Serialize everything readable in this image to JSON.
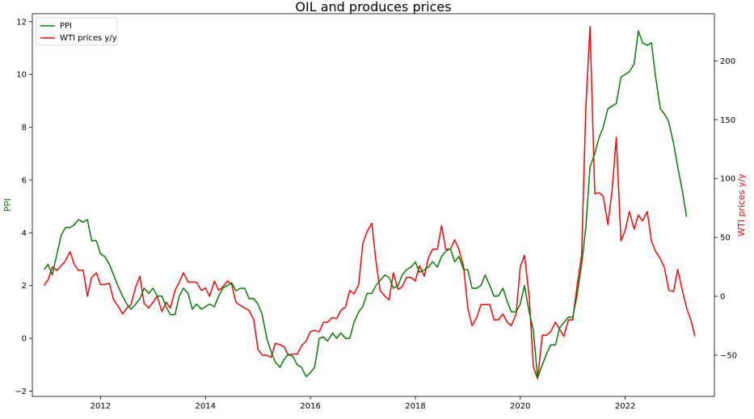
{
  "chart_data": {
    "type": "line",
    "title": "OIL and produces prices",
    "xlabel": "",
    "ylabel_left": "PPI",
    "ylabel_right": "WTI prices y/y",
    "xlim": [
      2010.7,
      2023.7
    ],
    "ylim_left": [
      -2.2,
      12.3
    ],
    "ylim_right": [
      -85,
      240
    ],
    "x_ticks": [
      2012,
      2014,
      2016,
      2018,
      2020,
      2022
    ],
    "y_ticks_left": [
      -2,
      0,
      2,
      4,
      6,
      8,
      10,
      12
    ],
    "y_ticks_right": [
      -50,
      0,
      50,
      100,
      150,
      200
    ],
    "grid": false,
    "legend_position": "top-left",
    "colors": {
      "PPI": "#008000",
      "WTI prices y/y": "#ff0000"
    },
    "series": [
      {
        "name": "PPI",
        "axis": "left",
        "points": [
          [
            2010.92,
            2.6
          ],
          [
            2011.0,
            2.8
          ],
          [
            2011.08,
            2.4
          ],
          [
            2011.17,
            3.2
          ],
          [
            2011.25,
            3.9
          ],
          [
            2011.33,
            4.2
          ],
          [
            2011.42,
            4.2
          ],
          [
            2011.5,
            4.3
          ],
          [
            2011.58,
            4.5
          ],
          [
            2011.67,
            4.4
          ],
          [
            2011.75,
            4.5
          ],
          [
            2011.83,
            3.7
          ],
          [
            2011.92,
            3.7
          ],
          [
            2012.0,
            3.2
          ],
          [
            2012.08,
            3.1
          ],
          [
            2012.17,
            2.8
          ],
          [
            2012.25,
            2.4
          ],
          [
            2012.33,
            2.0
          ],
          [
            2012.42,
            1.6
          ],
          [
            2012.5,
            1.3
          ],
          [
            2012.58,
            1.1
          ],
          [
            2012.67,
            1.3
          ],
          [
            2012.75,
            1.5
          ],
          [
            2012.83,
            1.9
          ],
          [
            2012.92,
            1.7
          ],
          [
            2013.0,
            1.9
          ],
          [
            2013.08,
            1.6
          ],
          [
            2013.17,
            1.6
          ],
          [
            2013.25,
            1.2
          ],
          [
            2013.33,
            0.9
          ],
          [
            2013.42,
            0.9
          ],
          [
            2013.5,
            1.6
          ],
          [
            2013.58,
            1.9
          ],
          [
            2013.67,
            1.7
          ],
          [
            2013.75,
            1.1
          ],
          [
            2013.83,
            1.3
          ],
          [
            2013.92,
            1.1
          ],
          [
            2014.0,
            1.2
          ],
          [
            2014.08,
            1.3
          ],
          [
            2014.17,
            1.2
          ],
          [
            2014.25,
            1.6
          ],
          [
            2014.33,
            1.9
          ],
          [
            2014.42,
            2.0
          ],
          [
            2014.5,
            2.1
          ],
          [
            2014.58,
            1.8
          ],
          [
            2014.67,
            1.9
          ],
          [
            2014.75,
            1.9
          ],
          [
            2014.83,
            1.5
          ],
          [
            2014.92,
            1.5
          ],
          [
            2015.0,
            1.3
          ],
          [
            2015.08,
            0.9
          ],
          [
            2015.17,
            0.0
          ],
          [
            2015.25,
            -0.5
          ],
          [
            2015.33,
            -0.9
          ],
          [
            2015.42,
            -1.1
          ],
          [
            2015.5,
            -0.8
          ],
          [
            2015.58,
            -0.6
          ],
          [
            2015.67,
            -0.7
          ],
          [
            2015.75,
            -1.0
          ],
          [
            2015.83,
            -1.1
          ],
          [
            2015.92,
            -1.45
          ],
          [
            2016.0,
            -1.3
          ],
          [
            2016.08,
            -1.1
          ],
          [
            2016.17,
            0.0
          ],
          [
            2016.25,
            0.05
          ],
          [
            2016.33,
            -0.1
          ],
          [
            2016.42,
            0.2
          ],
          [
            2016.5,
            0.0
          ],
          [
            2016.58,
            0.2
          ],
          [
            2016.67,
            0.0
          ],
          [
            2016.75,
            0.0
          ],
          [
            2016.83,
            0.6
          ],
          [
            2016.92,
            1.0
          ],
          [
            2017.0,
            1.2
          ],
          [
            2017.08,
            1.7
          ],
          [
            2017.17,
            1.7
          ],
          [
            2017.25,
            2.0
          ],
          [
            2017.33,
            2.2
          ],
          [
            2017.42,
            2.4
          ],
          [
            2017.5,
            2.3
          ],
          [
            2017.58,
            1.9
          ],
          [
            2017.67,
            2.0
          ],
          [
            2017.75,
            2.4
          ],
          [
            2017.83,
            2.6
          ],
          [
            2017.92,
            2.7
          ],
          [
            2018.0,
            2.9
          ],
          [
            2018.08,
            2.5
          ],
          [
            2018.17,
            2.6
          ],
          [
            2018.25,
            2.7
          ],
          [
            2018.33,
            2.9
          ],
          [
            2018.42,
            2.7
          ],
          [
            2018.5,
            3.1
          ],
          [
            2018.58,
            3.3
          ],
          [
            2018.67,
            3.4
          ],
          [
            2018.75,
            2.9
          ],
          [
            2018.83,
            3.1
          ],
          [
            2018.92,
            2.6
          ],
          [
            2019.0,
            2.6
          ],
          [
            2019.08,
            1.9
          ],
          [
            2019.17,
            1.9
          ],
          [
            2019.25,
            2.0
          ],
          [
            2019.33,
            2.4
          ],
          [
            2019.42,
            2.0
          ],
          [
            2019.5,
            1.6
          ],
          [
            2019.58,
            1.6
          ],
          [
            2019.67,
            1.9
          ],
          [
            2019.75,
            1.4
          ],
          [
            2019.83,
            1.0
          ],
          [
            2019.92,
            1.0
          ],
          [
            2020.0,
            1.3
          ],
          [
            2020.08,
            2.0
          ],
          [
            2020.17,
            1.0
          ],
          [
            2020.25,
            0.3
          ],
          [
            2020.33,
            -1.5
          ],
          [
            2020.42,
            -1.0
          ],
          [
            2020.5,
            -0.6
          ],
          [
            2020.58,
            -0.25
          ],
          [
            2020.67,
            -0.25
          ],
          [
            2020.75,
            0.4
          ],
          [
            2020.83,
            0.6
          ],
          [
            2020.92,
            0.8
          ],
          [
            2021.0,
            0.8
          ],
          [
            2021.08,
            1.6
          ],
          [
            2021.17,
            2.8
          ],
          [
            2021.25,
            4.2
          ],
          [
            2021.33,
            6.5
          ],
          [
            2021.42,
            7.0
          ],
          [
            2021.5,
            7.6
          ],
          [
            2021.58,
            8.0
          ],
          [
            2021.67,
            8.7
          ],
          [
            2021.75,
            8.8
          ],
          [
            2021.83,
            8.9
          ],
          [
            2021.92,
            9.9
          ],
          [
            2022.0,
            10.0
          ],
          [
            2022.08,
            10.1
          ],
          [
            2022.17,
            10.4
          ],
          [
            2022.25,
            11.65
          ],
          [
            2022.33,
            11.2
          ],
          [
            2022.42,
            11.1
          ],
          [
            2022.5,
            11.2
          ],
          [
            2022.58,
            9.9
          ],
          [
            2022.67,
            8.7
          ],
          [
            2022.75,
            8.5
          ],
          [
            2022.83,
            8.2
          ],
          [
            2022.92,
            7.4
          ],
          [
            2023.0,
            6.5
          ],
          [
            2023.08,
            5.7
          ],
          [
            2023.17,
            4.6
          ]
        ]
      },
      {
        "name": "WTI prices y/y",
        "axis": "right",
        "points": [
          [
            2010.92,
            9
          ],
          [
            2011.0,
            14
          ],
          [
            2011.08,
            25
          ],
          [
            2011.17,
            22
          ],
          [
            2011.25,
            26
          ],
          [
            2011.33,
            30
          ],
          [
            2011.42,
            38
          ],
          [
            2011.5,
            27
          ],
          [
            2011.58,
            22
          ],
          [
            2011.67,
            22
          ],
          [
            2011.75,
            0
          ],
          [
            2011.83,
            16
          ],
          [
            2011.92,
            20
          ],
          [
            2012.0,
            10
          ],
          [
            2012.08,
            10
          ],
          [
            2012.17,
            11
          ],
          [
            2012.25,
            -3
          ],
          [
            2012.33,
            -8
          ],
          [
            2012.42,
            -15
          ],
          [
            2012.5,
            -10
          ],
          [
            2012.58,
            -7
          ],
          [
            2012.67,
            8
          ],
          [
            2012.75,
            17
          ],
          [
            2012.83,
            -6
          ],
          [
            2012.92,
            -10
          ],
          [
            2013.0,
            -5
          ],
          [
            2013.08,
            0
          ],
          [
            2013.17,
            -13
          ],
          [
            2013.25,
            -5
          ],
          [
            2013.33,
            -10
          ],
          [
            2013.42,
            5
          ],
          [
            2013.5,
            12
          ],
          [
            2013.58,
            20
          ],
          [
            2013.67,
            12
          ],
          [
            2013.75,
            12
          ],
          [
            2013.83,
            12
          ],
          [
            2013.92,
            5
          ],
          [
            2014.0,
            7
          ],
          [
            2014.08,
            0
          ],
          [
            2014.17,
            13
          ],
          [
            2014.25,
            5
          ],
          [
            2014.33,
            8
          ],
          [
            2014.42,
            13
          ],
          [
            2014.5,
            10
          ],
          [
            2014.58,
            -5
          ],
          [
            2014.67,
            -8
          ],
          [
            2014.75,
            -10
          ],
          [
            2014.83,
            -12
          ],
          [
            2014.92,
            -20
          ],
          [
            2015.0,
            -45
          ],
          [
            2015.08,
            -50
          ],
          [
            2015.17,
            -50
          ],
          [
            2015.25,
            -52
          ],
          [
            2015.33,
            -40
          ],
          [
            2015.42,
            -41
          ],
          [
            2015.5,
            -43
          ],
          [
            2015.58,
            -50
          ],
          [
            2015.67,
            -49
          ],
          [
            2015.75,
            -49
          ],
          [
            2015.83,
            -42
          ],
          [
            2015.92,
            -38
          ],
          [
            2016.0,
            -30
          ],
          [
            2016.08,
            -29
          ],
          [
            2016.17,
            -30
          ],
          [
            2016.25,
            -22
          ],
          [
            2016.33,
            -22
          ],
          [
            2016.42,
            -18
          ],
          [
            2016.5,
            -19
          ],
          [
            2016.58,
            -12
          ],
          [
            2016.67,
            -9
          ],
          [
            2016.75,
            5
          ],
          [
            2016.83,
            2
          ],
          [
            2016.92,
            10
          ],
          [
            2017.0,
            45
          ],
          [
            2017.08,
            55
          ],
          [
            2017.17,
            62
          ],
          [
            2017.25,
            30
          ],
          [
            2017.33,
            5
          ],
          [
            2017.42,
            0
          ],
          [
            2017.5,
            -3
          ],
          [
            2017.58,
            20
          ],
          [
            2017.67,
            6
          ],
          [
            2017.75,
            8
          ],
          [
            2017.83,
            16
          ],
          [
            2017.92,
            16
          ],
          [
            2018.0,
            13
          ],
          [
            2018.08,
            26
          ],
          [
            2018.17,
            17
          ],
          [
            2018.25,
            33
          ],
          [
            2018.33,
            40
          ],
          [
            2018.42,
            40
          ],
          [
            2018.5,
            60
          ],
          [
            2018.58,
            40
          ],
          [
            2018.67,
            40
          ],
          [
            2018.75,
            48
          ],
          [
            2018.83,
            40
          ],
          [
            2018.92,
            25
          ],
          [
            2019.0,
            -10
          ],
          [
            2019.08,
            -25
          ],
          [
            2019.17,
            -18
          ],
          [
            2019.25,
            -7
          ],
          [
            2019.33,
            -7
          ],
          [
            2019.42,
            -7
          ],
          [
            2019.5,
            -20
          ],
          [
            2019.58,
            -20
          ],
          [
            2019.67,
            -15
          ],
          [
            2019.75,
            -22
          ],
          [
            2019.83,
            -25
          ],
          [
            2019.92,
            -15
          ],
          [
            2020.0,
            25
          ],
          [
            2020.08,
            35
          ],
          [
            2020.17,
            0
          ],
          [
            2020.25,
            -60
          ],
          [
            2020.33,
            -70
          ],
          [
            2020.42,
            -33
          ],
          [
            2020.5,
            -33
          ],
          [
            2020.58,
            -30
          ],
          [
            2020.67,
            -22
          ],
          [
            2020.75,
            -28
          ],
          [
            2020.83,
            -34
          ],
          [
            2020.92,
            -20
          ],
          [
            2021.0,
            -20
          ],
          [
            2021.08,
            8
          ],
          [
            2021.17,
            35
          ],
          [
            2021.25,
            160
          ],
          [
            2021.33,
            229
          ],
          [
            2021.42,
            87
          ],
          [
            2021.5,
            88
          ],
          [
            2021.58,
            85
          ],
          [
            2021.67,
            61
          ],
          [
            2021.75,
            90
          ],
          [
            2021.83,
            135
          ],
          [
            2021.92,
            47
          ],
          [
            2022.0,
            56
          ],
          [
            2022.08,
            72
          ],
          [
            2022.17,
            57
          ],
          [
            2022.25,
            69
          ],
          [
            2022.33,
            64
          ],
          [
            2022.42,
            72
          ],
          [
            2022.5,
            47
          ],
          [
            2022.58,
            38
          ],
          [
            2022.67,
            32
          ],
          [
            2022.75,
            24
          ],
          [
            2022.83,
            5
          ],
          [
            2022.92,
            4
          ],
          [
            2023.0,
            23
          ],
          [
            2023.08,
            7
          ],
          [
            2023.17,
            -10
          ],
          [
            2023.25,
            -20
          ],
          [
            2023.33,
            -34
          ]
        ]
      }
    ]
  }
}
